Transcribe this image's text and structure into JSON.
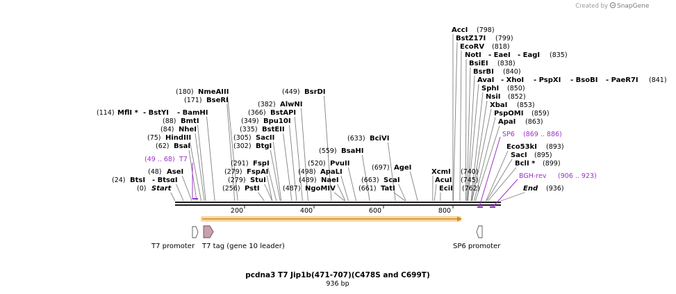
{
  "credit": {
    "prefix": "Created by",
    "brand": "SnapGene"
  },
  "title": "pcdna3 T7 Jip1b(471-707)(C478S and C699T)",
  "subtitle": "936 bp",
  "ticks": [
    "200",
    "400",
    "600",
    "800"
  ],
  "enzymes": [
    {
      "pos": "(798)",
      "name": "AccI"
    },
    {
      "pos": "(799)",
      "name": "BstZ17I"
    },
    {
      "pos": "(818)",
      "name": "EcoRV"
    },
    {
      "pos": "(835)",
      "name": "NotI",
      "name2": "- EaeI",
      "name3": "- EagI"
    },
    {
      "pos": "(838)",
      "name": "BsiEI"
    },
    {
      "pos": "(840)",
      "name": "BsrBI"
    },
    {
      "pos": "(841)",
      "name": "AvaI",
      "name2": "- XhoI",
      "name3": "- PspXI",
      "name4": "- BsoBI",
      "name5": "- PaeR7I"
    },
    {
      "pos": "(850)",
      "name": "SphI"
    },
    {
      "pos": "(852)",
      "name": "NsiI"
    },
    {
      "pos": "(853)",
      "name": "XbaI"
    },
    {
      "pos": "(859)",
      "name": "PspOMI"
    },
    {
      "pos": "(863)",
      "name": "ApaI"
    },
    {
      "pos": "(893)",
      "name": "Eco53kI"
    },
    {
      "pos": "(895)",
      "name": "SacI"
    },
    {
      "pos": "(899)",
      "name": "BclI *"
    },
    {
      "pos": "(936)",
      "name": "End"
    },
    {
      "pos": "(180)",
      "name": "NmeAIII"
    },
    {
      "pos": "(171)",
      "name": "BseRI"
    },
    {
      "pos": "(114)",
      "name": "MflI *",
      "name2": "- BstYI",
      "name3": "- BamHI"
    },
    {
      "pos": "(88)",
      "name": "BmtI"
    },
    {
      "pos": "(84)",
      "name": "NheI"
    },
    {
      "pos": "(75)",
      "name": "HindIII"
    },
    {
      "pos": "(62)",
      "name": "BsaI"
    },
    {
      "pos": "(48)",
      "name": "AseI"
    },
    {
      "pos": "(24)",
      "name": "BtsI",
      "name2": "- BtsαI"
    },
    {
      "pos": "(0)",
      "name": "Start"
    },
    {
      "pos": "(449)",
      "name": "BsrDI"
    },
    {
      "pos": "(382)",
      "name": "AlwNI"
    },
    {
      "pos": "(366)",
      "name": "BstAPI"
    },
    {
      "pos": "(349)",
      "name": "Bpu10I"
    },
    {
      "pos": "(335)",
      "name": "BstEII"
    },
    {
      "pos": "(305)",
      "name": "SacII"
    },
    {
      "pos": "(302)",
      "name": "BtgI"
    },
    {
      "pos": "(291)",
      "name": "FspI"
    },
    {
      "pos": "(279)",
      "name": "FspAI"
    },
    {
      "pos": "(279)",
      "name": "StuI"
    },
    {
      "pos": "(256)",
      "name": "PstI"
    },
    {
      "pos": "(633)",
      "name": "BciVI"
    },
    {
      "pos": "(559)",
      "name": "BsaHI"
    },
    {
      "pos": "(520)",
      "name": "PvuII"
    },
    {
      "pos": "(498)",
      "name": "ApaLI"
    },
    {
      "pos": "(489)",
      "name": "NaeI"
    },
    {
      "pos": "(487)",
      "name": "NgoMIV"
    },
    {
      "pos": "(697)",
      "name": "AgeI"
    },
    {
      "pos": "(663)",
      "name": "ScaI"
    },
    {
      "pos": "(661)",
      "name": "TatI"
    },
    {
      "pos": "(740)",
      "name": "XcmI"
    },
    {
      "pos": "(745)",
      "name": "AcuI"
    },
    {
      "pos": "(762)",
      "name": "EciI"
    }
  ],
  "primers": [
    {
      "pos": "(49 .. 68)",
      "name": "T7"
    },
    {
      "pos": "(869 .. 886)",
      "name": "SP6"
    },
    {
      "pos": "(906 .. 923)",
      "name": "BGH-rev"
    }
  ],
  "features": [
    {
      "name": "T7 promoter"
    },
    {
      "name": "T7 tag (gene 10 leader)"
    },
    {
      "name": "SP6 promoter"
    }
  ],
  "colors": {
    "primer": "#9b30c8",
    "orf": "#f5c77e",
    "orf_arrow": "#d18a1c",
    "t7tag": "#c8a0b0"
  }
}
